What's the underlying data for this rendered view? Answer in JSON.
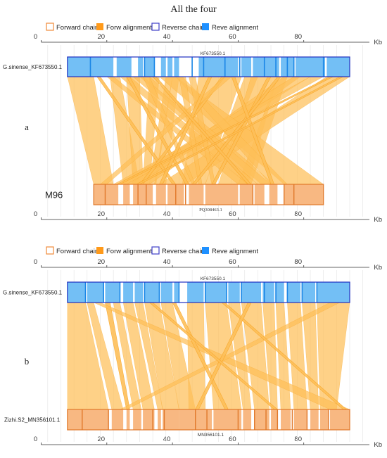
{
  "title": "All the four",
  "legend": {
    "items": [
      {
        "label": "Forward chain",
        "kind": "outline",
        "color": "#f08a3a"
      },
      {
        "label": "Forw alignment",
        "kind": "fill",
        "color": "#ff9a1a"
      },
      {
        "label": "Reverse chain",
        "kind": "outline",
        "color": "#4040c8"
      },
      {
        "label": "Reve alignment",
        "kind": "fill",
        "color": "#1e90ff"
      }
    ]
  },
  "axis": {
    "unit": "Kb",
    "ticks": [
      0,
      20,
      40,
      60,
      80
    ],
    "tick_labels": [
      "0",
      "20",
      "40",
      "60",
      "80"
    ]
  },
  "colors": {
    "reverse_fill": "#73bff5",
    "reverse_stroke": "#2030c0",
    "reverse_dark": "#1a86e6",
    "forward_fill": "#f8b882",
    "forward_stroke": "#e0782a",
    "link_fill": "#fdbf59",
    "link_line": "#f7a320"
  },
  "chart_data": [
    {
      "type": "diagram",
      "panel": "a",
      "top_chain": {
        "name": "G.sinense_KF673550.1",
        "id": "KF673550.1",
        "start": 8,
        "end": 94,
        "blocks": [
          [
            8,
            22
          ],
          [
            23,
            27.5
          ],
          [
            29.5,
            31
          ],
          [
            31.5,
            34.5
          ],
          [
            36.5,
            38
          ],
          [
            38.5,
            40
          ],
          [
            40.5,
            42
          ],
          [
            48,
            60
          ],
          [
            61,
            64
          ],
          [
            64.5,
            72.5
          ],
          [
            73,
            77
          ],
          [
            77.5,
            86.5
          ],
          [
            87,
            94
          ]
        ],
        "marks": [
          15,
          31.5,
          34.5,
          46,
          49.5,
          56,
          60.5,
          68,
          71.5,
          75,
          77,
          86
        ]
      },
      "bottom_chain": {
        "name": "M96",
        "id": "PQ308463.1",
        "start": 16,
        "end": 86,
        "blocks": [
          [
            16,
            23.5
          ],
          [
            25,
            27
          ],
          [
            28,
            34
          ],
          [
            35,
            38
          ],
          [
            38.5,
            43.5
          ],
          [
            45,
            49.5
          ],
          [
            50,
            60
          ],
          [
            60.5,
            64.5
          ],
          [
            65,
            68
          ],
          [
            69.5,
            72
          ],
          [
            74,
            86
          ]
        ],
        "marks": [
          19.5,
          29.5,
          32,
          41,
          44,
          64.5,
          74,
          77
        ]
      },
      "links": [
        [
          8,
          16,
          16,
          22
        ],
        [
          21,
          24,
          25,
          30
        ],
        [
          26,
          30,
          28,
          31
        ],
        [
          33,
          36,
          31,
          33
        ],
        [
          38,
          40,
          33,
          35
        ],
        [
          40,
          42,
          34.5,
          38
        ],
        [
          48,
          61,
          43,
          50
        ],
        [
          62,
          66,
          50,
          53
        ],
        [
          64,
          72,
          54,
          63
        ],
        [
          72,
          75,
          60,
          64
        ],
        [
          74,
          79,
          27,
          33
        ],
        [
          77,
          82,
          24,
          29
        ],
        [
          82,
          86,
          22,
          26
        ],
        [
          87,
          94,
          36,
          44
        ],
        [
          30,
          33,
          67,
          71
        ],
        [
          28,
          31,
          66,
          70
        ],
        [
          36,
          41,
          74,
          86
        ],
        [
          41,
          43,
          70,
          75
        ],
        [
          20,
          22,
          60,
          63
        ],
        [
          24,
          27,
          63,
          66
        ],
        [
          26,
          27,
          44,
          45
        ],
        [
          31,
          33,
          46,
          47
        ],
        [
          42,
          44,
          48,
          49
        ],
        [
          45,
          47,
          52,
          53
        ],
        [
          17,
          18,
          40,
          41
        ],
        [
          55,
          56,
          30,
          31
        ],
        [
          56,
          58,
          18,
          20
        ],
        [
          51,
          52,
          36,
          37
        ],
        [
          69,
          70,
          52,
          53
        ],
        [
          72,
          73,
          46,
          47
        ],
        [
          34,
          35,
          63,
          64
        ],
        [
          58,
          59,
          70,
          71
        ],
        [
          88,
          89,
          23,
          24
        ],
        [
          91,
          92,
          29,
          30
        ]
      ]
    },
    {
      "type": "diagram",
      "panel": "b",
      "top_chain": {
        "name": "G.sinense_KF673550.1",
        "id": "KF673550.1",
        "start": 8,
        "end": 94,
        "blocks": [
          [
            8,
            13.5
          ],
          [
            14,
            19
          ],
          [
            19.5,
            24
          ],
          [
            25,
            28
          ],
          [
            28.5,
            31
          ],
          [
            31.5,
            36
          ],
          [
            36.5,
            40
          ],
          [
            40.5,
            42
          ],
          [
            44.5,
            49.5
          ],
          [
            50,
            56.5
          ],
          [
            57,
            60.5
          ],
          [
            61,
            67
          ],
          [
            67.5,
            71
          ],
          [
            71.5,
            74
          ],
          [
            75,
            79
          ],
          [
            79.5,
            83.5
          ],
          [
            84,
            94
          ]
        ],
        "marks": [
          13.5,
          19,
          24,
          31.5,
          36,
          42,
          50,
          56.5,
          61,
          68,
          71.5,
          75,
          79.5,
          84
        ]
      },
      "bottom_chain": {
        "name": "Zizhi.S2_MN356101.1",
        "id": "MN356101.1",
        "start": 8,
        "end": 94,
        "blocks": [
          [
            8,
            20.5
          ],
          [
            21.5,
            25
          ],
          [
            26,
            27
          ],
          [
            28,
            30.5
          ],
          [
            31,
            34.5
          ],
          [
            35.5,
            36.5
          ],
          [
            37,
            42
          ],
          [
            42,
            52
          ],
          [
            52.5,
            61
          ],
          [
            61.5,
            64
          ],
          [
            65,
            69.5
          ],
          [
            70,
            72
          ],
          [
            73,
            76
          ],
          [
            77,
            81
          ],
          [
            82,
            84.5
          ],
          [
            85,
            87.5
          ],
          [
            88,
            94
          ]
        ],
        "marks": [
          12.5,
          20.5,
          34,
          37.5,
          47,
          50.5,
          60,
          65,
          68.5,
          72,
          76.5,
          81,
          87.5
        ]
      },
      "links": [
        [
          8,
          13.5,
          8,
          20.5
        ],
        [
          14,
          16,
          21.5,
          25
        ],
        [
          19.5,
          21,
          26,
          27
        ],
        [
          22,
          24,
          28,
          30.5
        ],
        [
          25,
          28,
          31,
          34.5
        ],
        [
          28.5,
          31,
          35.5,
          37
        ],
        [
          31.5,
          36,
          37,
          42
        ],
        [
          36.5,
          40,
          42,
          47
        ],
        [
          44.5,
          49.5,
          45,
          50
        ],
        [
          50,
          56.5,
          52.5,
          61
        ],
        [
          57,
          60.5,
          61.5,
          64
        ],
        [
          61,
          67,
          65,
          69.5
        ],
        [
          67.5,
          71,
          70,
          72
        ],
        [
          71.5,
          74,
          73,
          76
        ],
        [
          75,
          79,
          77,
          81
        ],
        [
          79.5,
          83.5,
          82,
          84.5
        ],
        [
          84,
          94,
          85,
          90
        ],
        [
          16,
          18,
          88,
          94
        ],
        [
          88,
          91,
          24,
          26
        ],
        [
          55,
          56,
          92,
          93
        ],
        [
          40,
          41,
          56,
          57
        ],
        [
          63,
          64,
          47,
          48
        ],
        [
          33,
          34,
          71,
          72
        ]
      ]
    }
  ],
  "panels": [
    {
      "letter": "a",
      "top_label": "G.sinense_KF673550.1",
      "top_id": "KF673550.1",
      "bottom_label": "M96",
      "bottom_id": "PQ308463.1",
      "bottom_style": "big"
    },
    {
      "letter": "b",
      "top_label": "G.sinense_KF673550.1",
      "top_id": "KF673550.1",
      "bottom_label": "Zizhi.S2_MN356101.1",
      "bottom_id": "MN356101.1",
      "bottom_style": "small"
    }
  ]
}
